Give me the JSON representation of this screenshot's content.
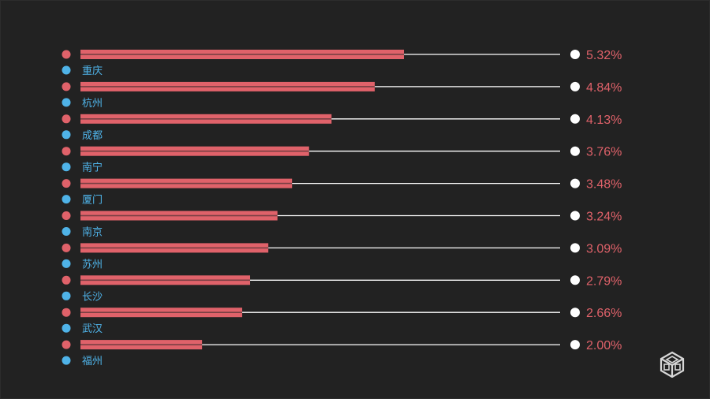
{
  "chart_data": {
    "type": "bar",
    "orientation": "horizontal",
    "categories": [
      "重庆",
      "杭州",
      "成都",
      "南宁",
      "厦门",
      "南京",
      "苏州",
      "长沙",
      "武汉",
      "福州"
    ],
    "values": [
      5.32,
      4.84,
      4.13,
      3.76,
      3.48,
      3.24,
      3.09,
      2.79,
      2.66,
      2.0
    ],
    "value_labels": [
      "5.32%",
      "4.84%",
      "4.13%",
      "3.76%",
      "3.48%",
      "3.24%",
      "3.09%",
      "2.79%",
      "2.66%",
      "2.00%"
    ],
    "unit": "%",
    "xlim": [
      0,
      5.32
    ],
    "title": "",
    "xlabel": "",
    "ylabel": "",
    "grid": false,
    "legend": "none",
    "colors": {
      "background": "#222222",
      "bar": "#e0626a",
      "marker_bar": "#e0626a",
      "marker_category": "#4fb3e8",
      "category_text": "#4fb3e8",
      "value_text": "#e0626a",
      "leader_line": "#ffffff",
      "end_dot": "#ffffff"
    }
  },
  "logo": {
    "icon": "cube-logo-icon"
  }
}
